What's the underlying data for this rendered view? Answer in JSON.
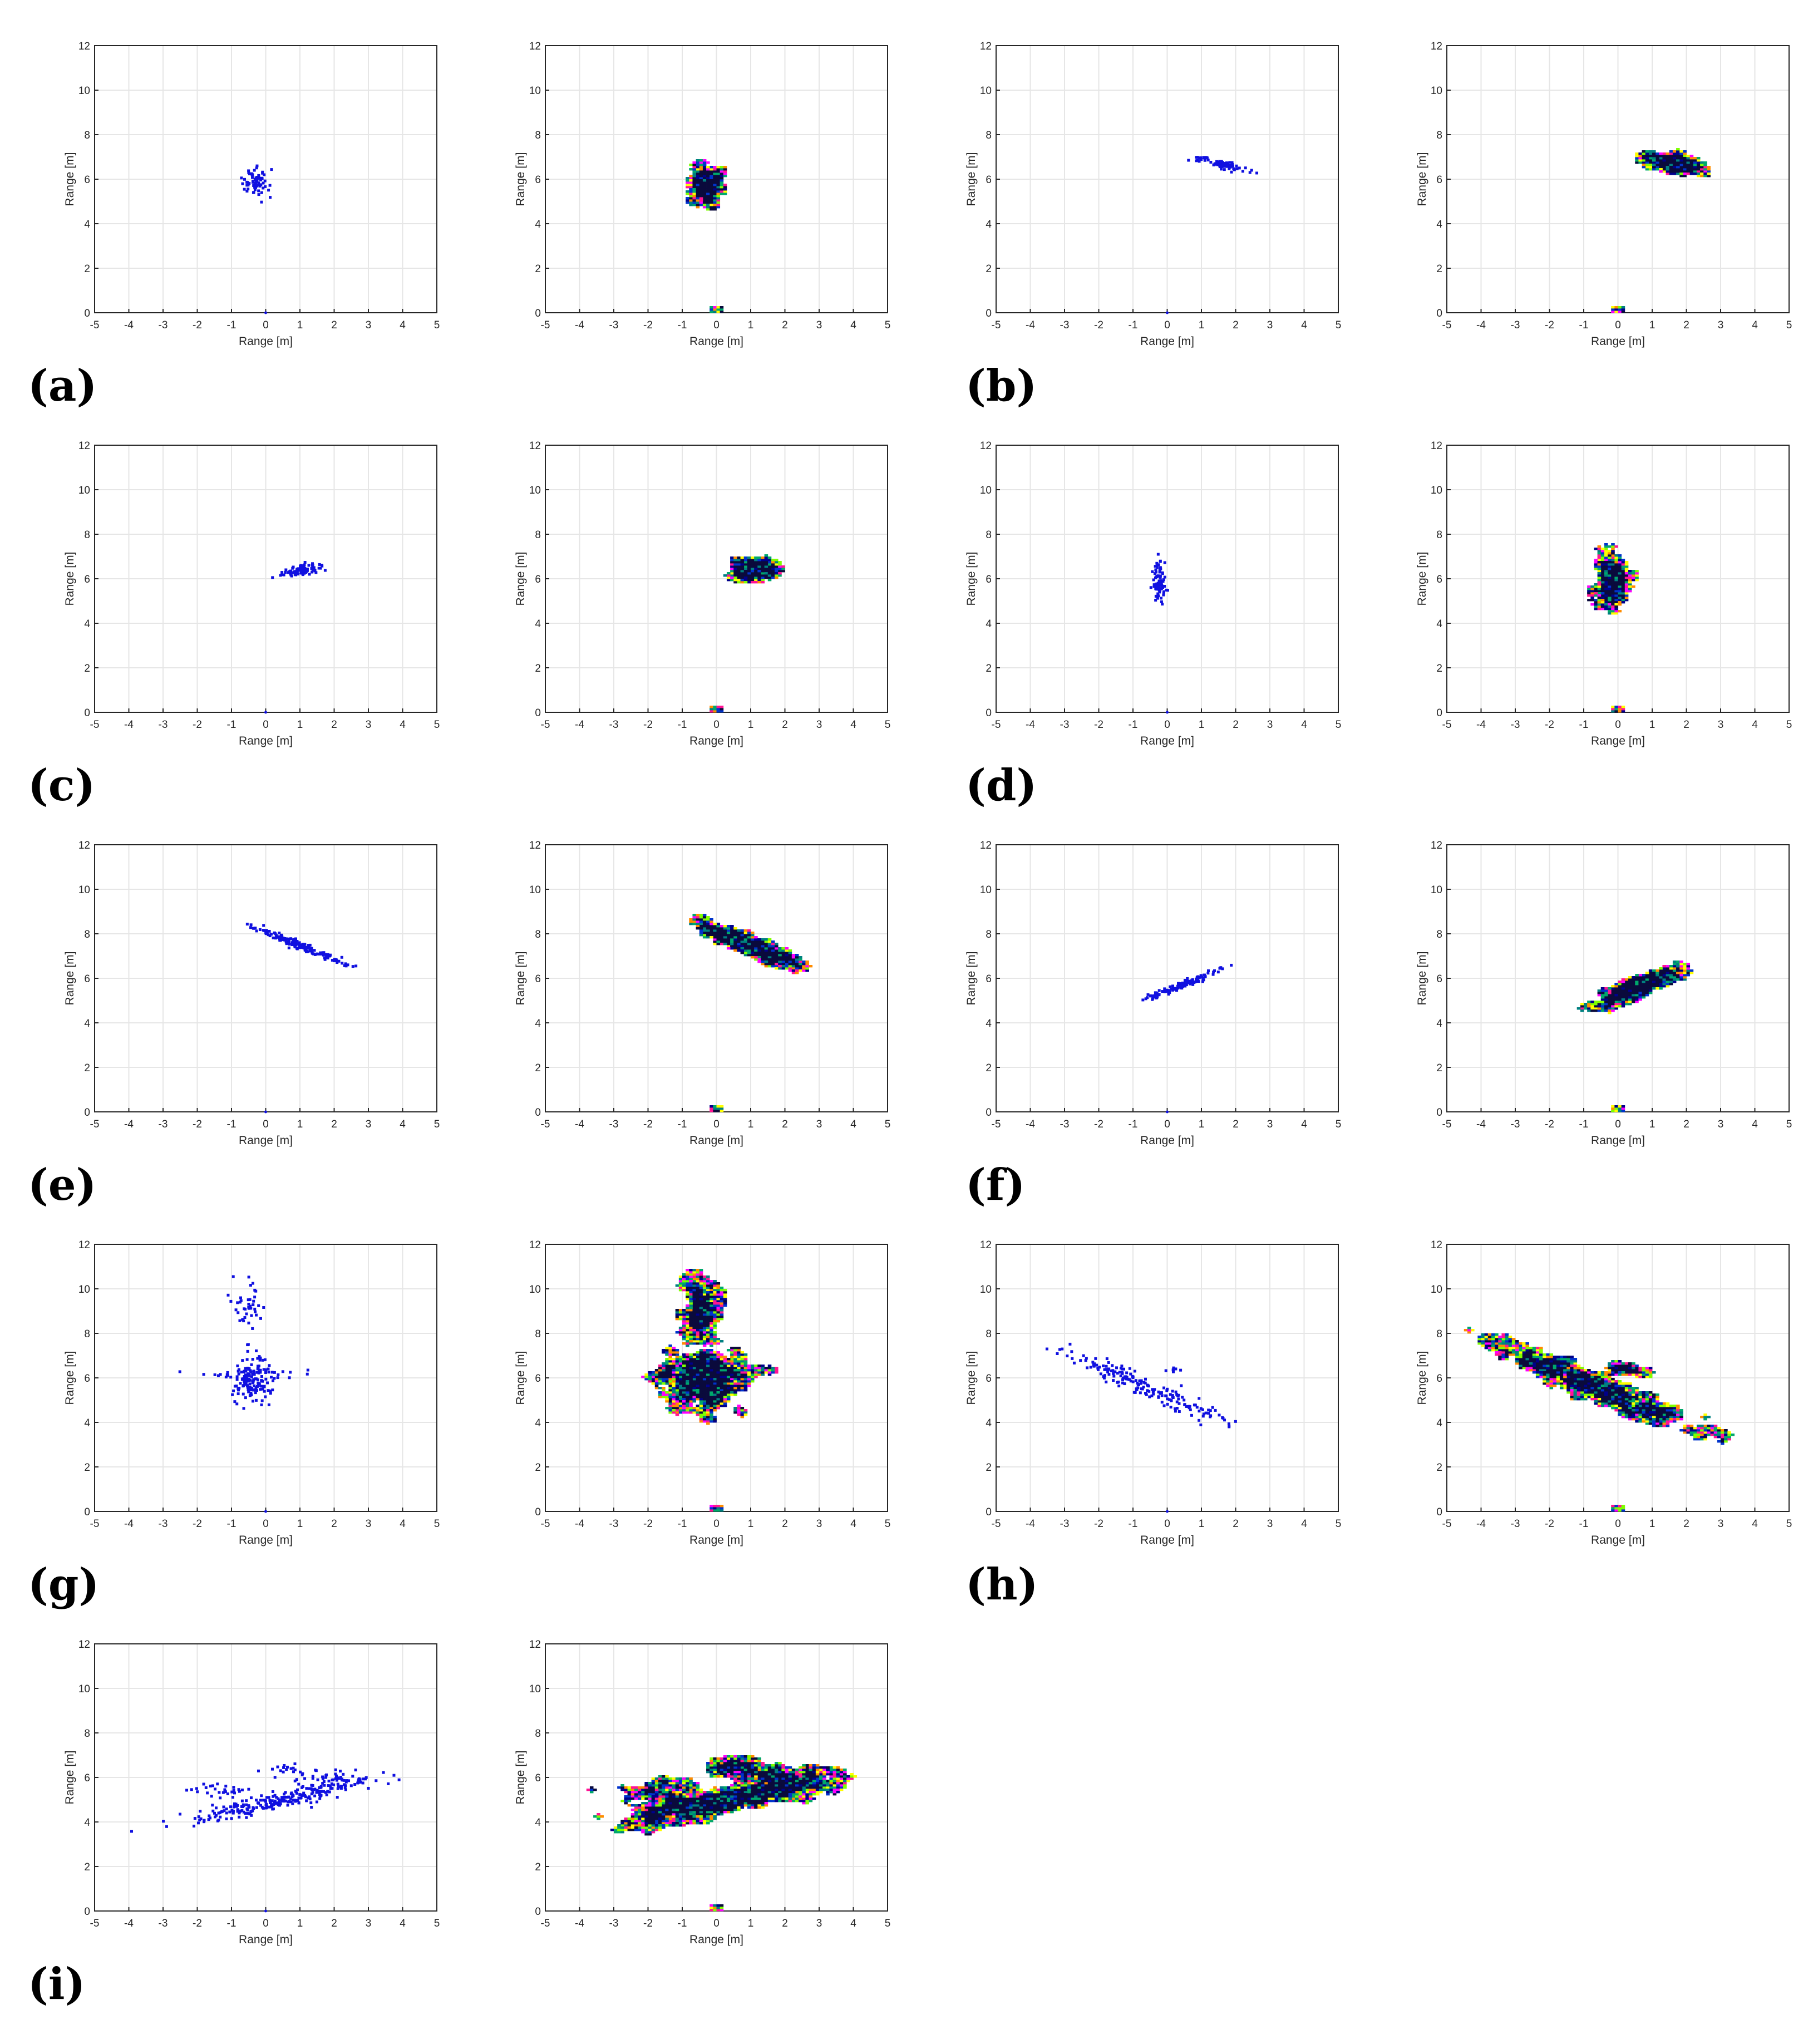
{
  "panel_labels": [
    "(a)",
    "(b)",
    "(c)",
    "(d)",
    "(e)",
    "(f)",
    "(g)",
    "(h)",
    "(i)"
  ],
  "axes": {
    "xlabel": "Range [m]",
    "ylabel": "Range [m]",
    "xlim": [
      -5,
      5
    ],
    "ylim": [
      0,
      12
    ],
    "xticks": [
      "-5",
      "-4",
      "-3",
      "-2",
      "-1",
      "0",
      "1",
      "2",
      "3",
      "4",
      "5"
    ],
    "yticks": [
      "0",
      "2",
      "4",
      "6",
      "8",
      "10",
      "12"
    ],
    "grid": true
  },
  "colors": {
    "points": "#1010e0",
    "heatmap_dark": "#0a0a3c",
    "heatmap_palette": [
      "#0a0a3c",
      "#00008b",
      "#0033cc",
      "#008080",
      "#00a86b",
      "#7fff00",
      "#ffff00",
      "#ff00ff",
      "#ff8c00",
      "#ff1493"
    ],
    "grid": "#e6e6e6",
    "axis": "#262626"
  },
  "chart_data": [
    {
      "panel": "(a)",
      "type": "scatter",
      "view": "points",
      "clusters": [
        {
          "cx": -0.3,
          "cy": 5.8,
          "sx": 0.18,
          "sy": 0.3,
          "rho": 0,
          "n": 70
        }
      ]
    },
    {
      "panel": "(a)",
      "type": "heatmap",
      "view": "occupancy",
      "clusters": [
        {
          "cx": -0.3,
          "cy": 5.8,
          "sx": 0.25,
          "sy": 0.35,
          "rho": 0,
          "n": 80
        }
      ]
    },
    {
      "panel": "(b)",
      "type": "scatter",
      "view": "points",
      "clusters": [
        {
          "cx": 1.55,
          "cy": 6.7,
          "sx": 0.42,
          "sy": 0.17,
          "rho": -0.85,
          "n": 85
        }
      ]
    },
    {
      "panel": "(b)",
      "type": "heatmap",
      "view": "occupancy",
      "clusters": [
        {
          "cx": 1.7,
          "cy": 6.7,
          "sx": 0.45,
          "sy": 0.2,
          "rho": -0.5,
          "n": 95
        }
      ]
    },
    {
      "panel": "(c)",
      "type": "scatter",
      "view": "points",
      "clusters": [
        {
          "cx": 1.05,
          "cy": 6.35,
          "sx": 0.28,
          "sy": 0.14,
          "rho": 0.5,
          "n": 90
        }
      ]
    },
    {
      "panel": "(c)",
      "type": "heatmap",
      "view": "occupancy",
      "clusters": [
        {
          "cx": 1.05,
          "cy": 6.4,
          "sx": 0.3,
          "sy": 0.22,
          "rho": 0,
          "n": 100
        }
      ]
    },
    {
      "panel": "(d)",
      "type": "scatter",
      "view": "points",
      "clusters": [
        {
          "cx": -0.25,
          "cy": 5.85,
          "sx": 0.1,
          "sy": 0.4,
          "rho": 0,
          "n": 85
        }
      ]
    },
    {
      "panel": "(d)",
      "type": "heatmap",
      "view": "occupancy",
      "clusters": [
        {
          "cx": -0.2,
          "cy": 5.8,
          "sx": 0.2,
          "sy": 0.55,
          "rho": 0,
          "n": 95
        }
      ]
    },
    {
      "panel": "(e)",
      "type": "scatter",
      "view": "points",
      "clusters": [
        {
          "cx": 0.95,
          "cy": 7.5,
          "sx": 0.65,
          "sy": 0.42,
          "rho": -0.97,
          "n": 170
        }
      ]
    },
    {
      "panel": "(e)",
      "type": "heatmap",
      "view": "occupancy",
      "clusters": [
        {
          "cx": 0.95,
          "cy": 7.5,
          "sx": 0.68,
          "sy": 0.45,
          "rho": -0.95,
          "n": 180
        }
      ]
    },
    {
      "panel": "(f)",
      "type": "scatter",
      "view": "points",
      "clusters": [
        {
          "cx": 0.45,
          "cy": 5.7,
          "sx": 0.55,
          "sy": 0.35,
          "rho": 0.97,
          "n": 140
        }
      ]
    },
    {
      "panel": "(f)",
      "type": "heatmap",
      "view": "occupancy",
      "clusters": [
        {
          "cx": 0.55,
          "cy": 5.6,
          "sx": 0.6,
          "sy": 0.42,
          "rho": 0.93,
          "n": 150
        }
      ]
    },
    {
      "panel": "(g)",
      "type": "scatter",
      "view": "points",
      "clusters": [
        {
          "cx": -0.4,
          "cy": 5.8,
          "sx": 0.3,
          "sy": 0.5,
          "rho": 0,
          "n": 150
        },
        {
          "cx": -0.5,
          "cy": 9.0,
          "sx": 0.22,
          "sy": 0.9,
          "rho": 0,
          "n": 45
        },
        {
          "cx": -0.3,
          "cy": 6.2,
          "sx": 0.75,
          "sy": 0.12,
          "rho": 0,
          "n": 30
        }
      ]
    },
    {
      "panel": "(g)",
      "type": "heatmap",
      "view": "occupancy",
      "clusters": [
        {
          "cx": -0.4,
          "cy": 5.8,
          "sx": 0.5,
          "sy": 0.7,
          "rho": 0,
          "n": 200
        },
        {
          "cx": -0.5,
          "cy": 9.0,
          "sx": 0.3,
          "sy": 1.0,
          "rho": 0,
          "n": 90
        },
        {
          "cx": -0.2,
          "cy": 6.1,
          "sx": 0.8,
          "sy": 0.22,
          "rho": 0,
          "n": 70
        }
      ]
    },
    {
      "panel": "(h)",
      "type": "scatter",
      "view": "points",
      "clusters": [
        {
          "cx": -0.6,
          "cy": 5.6,
          "sx": 1.25,
          "sy": 0.85,
          "rho": -0.96,
          "n": 190
        },
        {
          "cx": 0.3,
          "cy": 6.4,
          "sx": 0.25,
          "sy": 0.08,
          "rho": 0,
          "n": 8
        }
      ]
    },
    {
      "panel": "(h)",
      "type": "heatmap",
      "view": "occupancy",
      "clusters": [
        {
          "cx": -0.8,
          "cy": 5.7,
          "sx": 1.4,
          "sy": 0.9,
          "rho": -0.95,
          "n": 260
        },
        {
          "cx": 0.3,
          "cy": 6.4,
          "sx": 0.3,
          "sy": 0.12,
          "rho": 0,
          "n": 18
        }
      ]
    },
    {
      "panel": "(i)",
      "type": "scatter",
      "view": "points",
      "clusters": [
        {
          "cx": 0.2,
          "cy": 4.9,
          "sx": 1.3,
          "sy": 0.45,
          "rho": 0.9,
          "n": 230
        },
        {
          "cx": 2.0,
          "cy": 5.9,
          "sx": 0.55,
          "sy": 0.22,
          "rho": 0,
          "n": 60
        },
        {
          "cx": 0.5,
          "cy": 6.4,
          "sx": 0.3,
          "sy": 0.12,
          "rho": 0,
          "n": 15
        },
        {
          "cx": -1.3,
          "cy": 5.4,
          "sx": 0.45,
          "sy": 0.25,
          "rho": 0,
          "n": 30
        }
      ]
    },
    {
      "panel": "(i)",
      "type": "heatmap",
      "view": "occupancy",
      "clusters": [
        {
          "cx": 0.2,
          "cy": 4.9,
          "sx": 1.3,
          "sy": 0.5,
          "rho": 0.85,
          "n": 260
        },
        {
          "cx": 2.1,
          "cy": 5.9,
          "sx": 0.65,
          "sy": 0.3,
          "rho": 0,
          "n": 90
        },
        {
          "cx": 0.6,
          "cy": 6.5,
          "sx": 0.45,
          "sy": 0.2,
          "rho": 0,
          "n": 35
        },
        {
          "cx": -1.6,
          "cy": 5.3,
          "sx": 0.55,
          "sy": 0.3,
          "rho": 0,
          "n": 45
        }
      ]
    }
  ]
}
